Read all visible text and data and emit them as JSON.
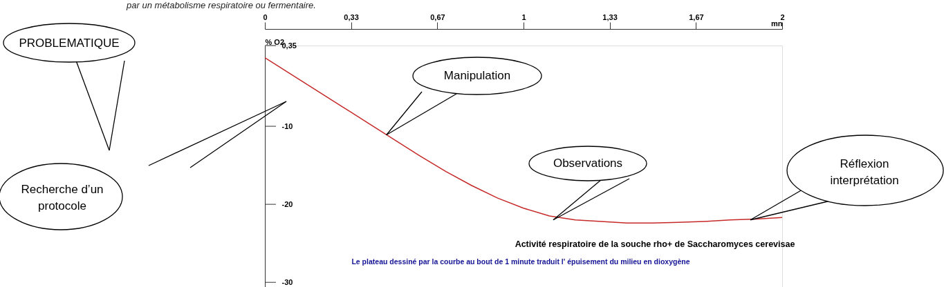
{
  "chart_data": {
    "type": "line",
    "title": "Activité respiratoire de la souche rho+ de Saccharomyces cerevisae",
    "xlabel": "mn",
    "ylabel": "% O2",
    "x": [
      0,
      0.1,
      0.2,
      0.3,
      0.4,
      0.5,
      0.6,
      0.7,
      0.8,
      0.9,
      1.0,
      1.1,
      1.2,
      1.3,
      1.4,
      1.5,
      1.6,
      1.7,
      1.8,
      1.9,
      2.0
    ],
    "series": [
      {
        "color": "#c62828",
        "values": [
          -1.2,
          -3.3,
          -5.4,
          -7.5,
          -9.6,
          -11.7,
          -13.8,
          -15.8,
          -17.6,
          -19.2,
          -20.5,
          -21.5,
          -22.0,
          -22.2,
          -22.4,
          -22.4,
          -22.3,
          -22.2,
          -22.0,
          -21.9,
          -21.7
        ]
      }
    ],
    "xlim": [
      0,
      2
    ],
    "xticks": [
      0,
      {
        "value": 0.333,
        "label": "0,33"
      },
      {
        "value": 0.667,
        "label": "0,67"
      },
      1,
      {
        "value": 1.333,
        "label": "1,33"
      },
      {
        "value": 1.667,
        "label": "1,67"
      },
      2
    ],
    "ylim": [
      -30.6,
      0.35
    ],
    "yticks": [
      {
        "value": 0.35,
        "label": "0,35"
      },
      -10,
      -20,
      -30
    ],
    "annotations": [
      "par un métabolisme respiratoire ou fermentaire.",
      "PROBLEMATIQUE",
      "Recherche d’un protocole",
      {
        "text": "Manipulation",
        "x": 0.47,
        "y": -11.1
      },
      {
        "text": "Observations",
        "x": 1.115,
        "y": -22.0
      },
      {
        "text": "Réflexion interprétation",
        "x": 1.877,
        "y": -22.0
      },
      "Le plateau dessiné par la courbe au bout de 1 minute traduit l' épuisement du milieu en dioxygène"
    ],
    "grid": false,
    "marker": "none",
    "line_style": "solid"
  }
}
